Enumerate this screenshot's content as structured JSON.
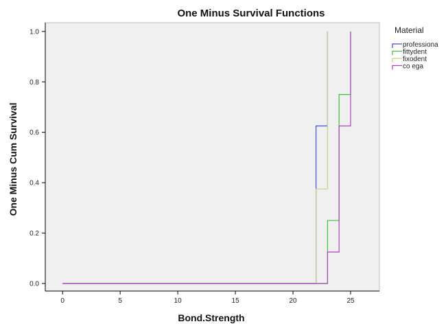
{
  "chart_data": {
    "type": "line",
    "step": true,
    "title": "One Minus Survival Functions",
    "xlabel": "Bond.Strength",
    "ylabel": "One Minus Cum Survival",
    "xlim": [
      -1.5,
      27.5
    ],
    "ylim": [
      -0.03,
      1.035
    ],
    "xticks": [
      0,
      5,
      10,
      15,
      20,
      25
    ],
    "yticks": [
      0.0,
      0.2,
      0.4,
      0.6,
      0.8,
      1.0
    ],
    "xtick_labels": [
      "0",
      "5",
      "10",
      "15",
      "20",
      "25"
    ],
    "ytick_labels": [
      "0.0",
      "0.2",
      "0.4",
      "0.6",
      "0.8",
      "1.0"
    ],
    "grid": false,
    "legend_title": "Material",
    "legend_position": "right",
    "background": "#f0f0f0",
    "series": [
      {
        "name": "professiona",
        "color": "#3a4fd0",
        "x": [
          0,
          22,
          23
        ],
        "y": [
          0.0,
          0.625,
          1.0
        ]
      },
      {
        "name": "fittydent",
        "color": "#3cbf3c",
        "x": [
          0,
          23,
          24,
          25
        ],
        "y": [
          0.0,
          0.25,
          0.75,
          1.0
        ]
      },
      {
        "name": "fixodent",
        "color": "#c8cf8a",
        "x": [
          0,
          22,
          23
        ],
        "y": [
          0.0,
          0.375,
          1.0
        ]
      },
      {
        "name": "co ega",
        "color": "#b040c0",
        "x": [
          0,
          23,
          24,
          25
        ],
        "y": [
          0.0,
          0.125,
          0.625,
          1.0
        ]
      }
    ]
  }
}
